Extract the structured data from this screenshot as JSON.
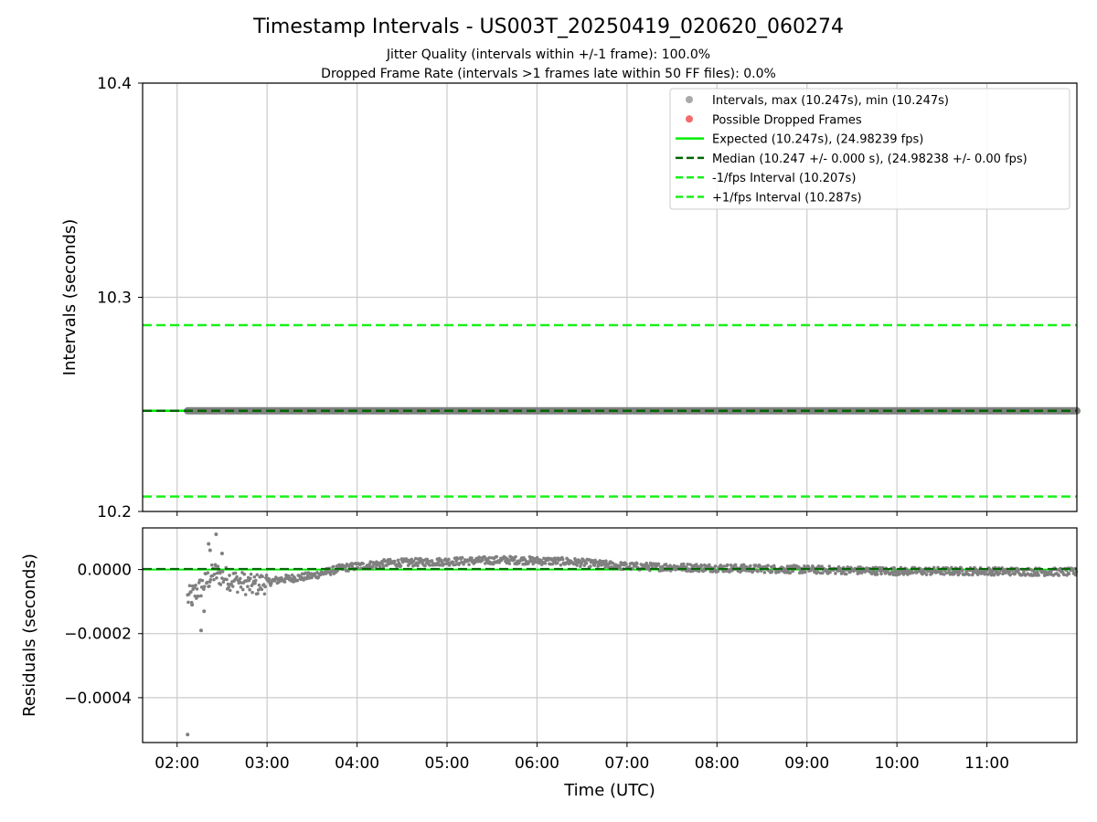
{
  "figure": {
    "title": "Timestamp Intervals - US003T_20250419_020620_060274",
    "subtitle_line1": "Jitter Quality (intervals within +/-1 frame): 100.0%",
    "subtitle_line2": "Dropped Frame Rate (intervals >1 frames late within 50 FF files): 0.0%"
  },
  "colors": {
    "intervals": "#808080",
    "intervals_legend": "#a9a9a9",
    "dropped": "#f36b6b",
    "expected": "#00ee00",
    "median": "#006400",
    "interval_bounds": "#19f019",
    "grid": "#cccccc"
  },
  "chart_data": [
    {
      "type": "line",
      "ylabel": "Intervals (seconds)",
      "ylim": [
        10.2,
        10.4
      ],
      "yticks": [
        10.2,
        10.3,
        10.4
      ],
      "ytick_labels": [
        "10.2",
        "10.3",
        "10.4"
      ],
      "xlim": [
        "01:37",
        "12:00"
      ],
      "grid": true,
      "legend_position": "top-right",
      "legend": [
        "Intervals, max (10.247s), min (10.247s)",
        "Possible Dropped Frames",
        "Expected (10.247s), (24.98239 fps)",
        "Median (10.247 +/- 0.000 s), (24.98238 +/- 0.00 fps)",
        "-1/fps Interval (10.207s)",
        "+1/fps Interval (10.287s)"
      ],
      "series": [
        {
          "name": "Intervals, max (10.247s), min (10.247s)",
          "kind": "scatter",
          "x_start": "02:07",
          "x_end": "12:00",
          "value": 10.247
        },
        {
          "name": "Possible Dropped Frames",
          "kind": "scatter",
          "values": []
        },
        {
          "name": "Expected (10.247s), (24.98239 fps)",
          "kind": "hline",
          "value": 10.24704
        },
        {
          "name": "Median (10.247 +/- 0.000 s), (24.98238 +/- 0.00 fps)",
          "kind": "hline-dashed",
          "value": 10.24704
        },
        {
          "name": "-1/fps Interval (10.207s)",
          "kind": "hline-dashed",
          "value": 10.207
        },
        {
          "name": "+1/fps Interval (10.287s)",
          "kind": "hline-dashed",
          "value": 10.287
        }
      ]
    },
    {
      "type": "scatter",
      "xlabel": "Time (UTC)",
      "ylabel": "Residuals (seconds)",
      "ylim": [
        -0.00054,
        0.00013
      ],
      "yticks": [
        0,
        -0.0002,
        -0.0004
      ],
      "ytick_labels": [
        "0.0000",
        "−0.0002",
        "−0.0004"
      ],
      "xticks": [
        "02:00",
        "03:00",
        "04:00",
        "05:00",
        "06:00",
        "07:00",
        "08:00",
        "09:00",
        "10:00",
        "11:00"
      ],
      "xlim": [
        "01:37",
        "12:00"
      ],
      "grid": true,
      "reference_lines": [
        {
          "kind": "expected",
          "value": 0
        },
        {
          "kind": "median",
          "value": 2e-06
        }
      ],
      "residual_trend": [
        {
          "x": "02:07",
          "y": -9e-05
        },
        {
          "x": "02:15",
          "y": -6e-05
        },
        {
          "x": "02:25",
          "y": -1e-05
        },
        {
          "x": "02:35",
          "y": -3e-05
        },
        {
          "x": "02:50",
          "y": -5e-05
        },
        {
          "x": "03:10",
          "y": -3e-05
        },
        {
          "x": "03:30",
          "y": -2e-05
        },
        {
          "x": "03:50",
          "y": 5e-06
        },
        {
          "x": "04:20",
          "y": 2e-05
        },
        {
          "x": "05:00",
          "y": 2.5e-05
        },
        {
          "x": "05:40",
          "y": 3e-05
        },
        {
          "x": "06:20",
          "y": 2.5e-05
        },
        {
          "x": "07:00",
          "y": 1e-05
        },
        {
          "x": "08:00",
          "y": 5e-06
        },
        {
          "x": "09:00",
          "y": 0
        },
        {
          "x": "10:00",
          "y": -5e-06
        },
        {
          "x": "11:00",
          "y": -5e-06
        },
        {
          "x": "12:00",
          "y": -8e-06
        }
      ],
      "outliers": [
        {
          "x": "02:07",
          "y": -0.000515
        },
        {
          "x": "02:16",
          "y": -0.00019
        },
        {
          "x": "02:21",
          "y": 8e-05
        },
        {
          "x": "02:22",
          "y": 6e-05
        },
        {
          "x": "02:26",
          "y": 0.00011
        },
        {
          "x": "02:30",
          "y": 5e-05
        },
        {
          "x": "02:18",
          "y": -0.00013
        },
        {
          "x": "02:10",
          "y": -0.00011
        }
      ]
    }
  ]
}
